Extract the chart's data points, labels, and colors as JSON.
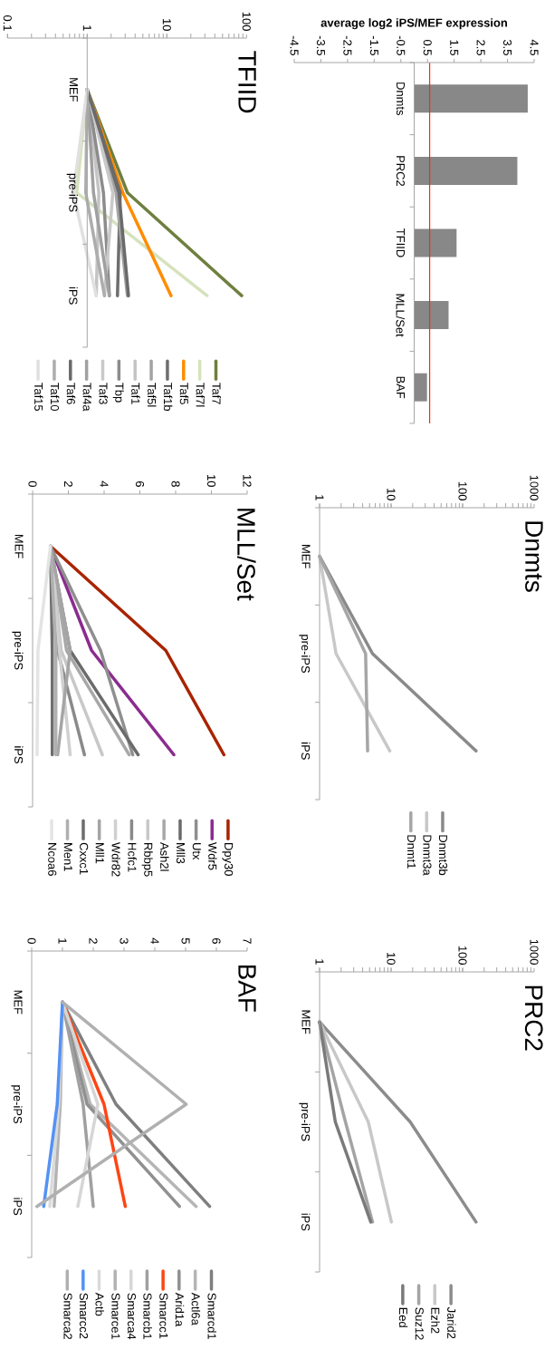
{
  "chart_data": [
    {
      "type": "bar",
      "orientation": "horizontal",
      "xlabel": "average log2 iPS/MEF expression",
      "categories": [
        "Dnmts",
        "PRC2",
        "TFIID",
        "MLL/Set",
        "BAF"
      ],
      "values": [
        4.26,
        3.87,
        1.59,
        1.29,
        0.48
      ],
      "color": "#888888",
      "xlim": [
        -4.5,
        4.5
      ],
      "xticks": [
        -4.5,
        -3.5,
        -2.5,
        -1.5,
        -0.5,
        0.5,
        1.5,
        2.5,
        3.5,
        4.5
      ],
      "ref_lines": [
        {
          "axis": "x",
          "value": 0.58,
          "color": "#ff2a00"
        }
      ]
    },
    {
      "type": "line",
      "orientation": "horizontal",
      "title": "Dnmts",
      "categories": [
        "MEF",
        "pre-iPS",
        "iPS"
      ],
      "log": "x",
      "xlim": [
        1,
        1000
      ],
      "xticks": [
        1,
        10,
        100,
        1000
      ],
      "legend": "bottom",
      "series": [
        {
          "name": "Dnmt3b",
          "color": "#8a8a8a",
          "values": [
            1,
            5.5,
            154
          ]
        },
        {
          "name": "Dnmt3a",
          "color": "#c8c8c8",
          "values": [
            1,
            1.7,
            9.6
          ]
        },
        {
          "name": "Dnmt1",
          "color": "#a6a6a6",
          "values": [
            1,
            4.4,
            4.7
          ]
        }
      ]
    },
    {
      "type": "line",
      "orientation": "horizontal",
      "title": "PRC2",
      "categories": [
        "MEF",
        "pre-iPS",
        "iPS"
      ],
      "log": "x",
      "xlim": [
        1,
        1000
      ],
      "xticks": [
        1,
        10,
        100,
        1000
      ],
      "legend": "bottom",
      "series": [
        {
          "name": "Jarid2",
          "color": "#8c8c8c",
          "values": [
            1,
            18.5,
            154
          ]
        },
        {
          "name": "Ezh2",
          "color": "#c8c8c8",
          "values": [
            1,
            4.8,
            10.1
          ]
        },
        {
          "name": "Suz12",
          "color": "#a4a4a4",
          "values": [
            1,
            2.3,
            5.5
          ]
        },
        {
          "name": "Eed",
          "color": "#7a7a7a",
          "values": [
            1,
            1.66,
            5.2
          ]
        }
      ]
    },
    {
      "type": "line",
      "orientation": "horizontal",
      "title": "TFIID",
      "categories": [
        "MEF",
        "pre-iPS",
        "iPS"
      ],
      "log": "x",
      "xlim": [
        0.1,
        100
      ],
      "xticks": [
        0.1,
        1,
        10,
        100
      ],
      "legend": "bottom",
      "series": [
        {
          "name": "Taf7",
          "color": "#6f7f3f",
          "values": [
            1,
            3.2,
            87
          ]
        },
        {
          "name": "Taf7l",
          "color": "#d6e2bd",
          "values": [
            1,
            0.74,
            32
          ]
        },
        {
          "name": "Taf5",
          "color": "#ff8c00",
          "values": [
            1,
            2.8,
            11.3
          ]
        },
        {
          "name": "Taf1b",
          "color": "#6e6e6e",
          "values": [
            1,
            2.6,
            2.4
          ]
        },
        {
          "name": "Taf5l",
          "color": "#a3a3a3",
          "values": [
            1,
            2.3,
            3.2
          ]
        },
        {
          "name": "Taf1",
          "color": "#c4c4c4",
          "values": [
            1,
            1.4,
            1.3
          ]
        },
        {
          "name": "Tbp",
          "color": "#8c8c8c",
          "values": [
            1,
            1.6,
            1.9
          ]
        },
        {
          "name": "Taf3",
          "color": "#c9c9c9",
          "values": [
            1,
            2.1,
            1.65
          ]
        },
        {
          "name": "Taf4a",
          "color": "#a0a0a0",
          "values": [
            1,
            1.2,
            1.9
          ]
        },
        {
          "name": "Taf6",
          "color": "#6a6a6a",
          "values": [
            1,
            2.5,
            3.3
          ]
        },
        {
          "name": "Taf10",
          "color": "#adadad",
          "values": [
            1,
            0.96,
            1.65
          ]
        },
        {
          "name": "Taf15",
          "color": "#e0e0e0",
          "values": [
            1,
            0.67,
            1.3
          ]
        }
      ]
    },
    {
      "type": "line",
      "orientation": "horizontal",
      "title": "MLL/Set",
      "categories": [
        "MEF",
        "pre-iPS",
        "iPS"
      ],
      "xlim": [
        0,
        12
      ],
      "xticks": [
        0,
        2,
        4,
        6,
        8,
        10,
        12
      ],
      "legend": "bottom",
      "series": [
        {
          "name": "Dpy30",
          "color": "#a82400",
          "values": [
            1,
            7.45,
            10.7
          ]
        },
        {
          "name": "Wdr5",
          "color": "#8b2b8f",
          "values": [
            1,
            3.3,
            7.9
          ]
        },
        {
          "name": "Utx",
          "color": "#8f8f8f",
          "values": [
            1,
            3.8,
            5.6
          ]
        },
        {
          "name": "Mll3",
          "color": "#6b6b6b",
          "values": [
            1,
            2.1,
            5.9
          ]
        },
        {
          "name": "Ash2l",
          "color": "#a8a8a8",
          "values": [
            1,
            1.9,
            5.4
          ]
        },
        {
          "name": "Rbbp5",
          "color": "#c8c8c8",
          "values": [
            1,
            1.6,
            3.9
          ]
        },
        {
          "name": "Hcfc1",
          "color": "#8a8a8a",
          "values": [
            1,
            1.4,
            2.9
          ]
        },
        {
          "name": "Wdr82",
          "color": "#d0d0d0",
          "values": [
            1,
            1.5,
            2.1
          ]
        },
        {
          "name": "Mll1",
          "color": "#a5a5a5",
          "values": [
            1,
            2.1,
            1.4
          ]
        },
        {
          "name": "Cxxc1",
          "color": "#6e6e6e",
          "values": [
            1,
            1.1,
            1.1
          ]
        },
        {
          "name": "Men1",
          "color": "#b0b0b0",
          "values": [
            1,
            1.3,
            1.3
          ]
        },
        {
          "name": "Ncoa6",
          "color": "#e4e4e4",
          "values": [
            1,
            0.3,
            0.25
          ]
        }
      ]
    },
    {
      "type": "line",
      "orientation": "horizontal",
      "title": "BAF",
      "categories": [
        "MEF",
        "pre-iPS",
        "iPS"
      ],
      "xlim": [
        0,
        7
      ],
      "xticks": [
        0,
        1,
        2,
        3,
        4,
        5,
        6,
        7
      ],
      "legend": "bottom",
      "series": [
        {
          "name": "Smarcd1",
          "color": "#7f7f7f",
          "values": [
            1,
            2.74,
            5.78
          ]
        },
        {
          "name": "Actl6a",
          "color": "#b5b5b5",
          "values": [
            1,
            1.9,
            5.34
          ]
        },
        {
          "name": "Arid1a",
          "color": "#909090",
          "values": [
            1,
            1.8,
            4.8
          ]
        },
        {
          "name": "Smarcc1",
          "color": "#ff4514",
          "values": [
            1,
            2.35,
            3.04
          ]
        },
        {
          "name": "Smarcb1",
          "color": "#a0a0a0",
          "values": [
            1,
            1.67,
            2.0
          ]
        },
        {
          "name": "Smarca4",
          "color": "#d6d6d6",
          "values": [
            1,
            2.15,
            1.5
          ]
        },
        {
          "name": "Smarce1",
          "color": "#b3b3b3",
          "values": [
            1,
            0.93,
            0.73
          ]
        },
        {
          "name": "Actb",
          "color": "#dadada",
          "values": [
            1,
            0.88,
            0.59
          ]
        },
        {
          "name": "Smarcc2",
          "color": "#5592f5",
          "values": [
            1,
            0.83,
            0.39
          ]
        },
        {
          "name": "Smarca2",
          "color": "#b0b0b0",
          "values": [
            1,
            5.02,
            0.17
          ]
        }
      ]
    }
  ]
}
